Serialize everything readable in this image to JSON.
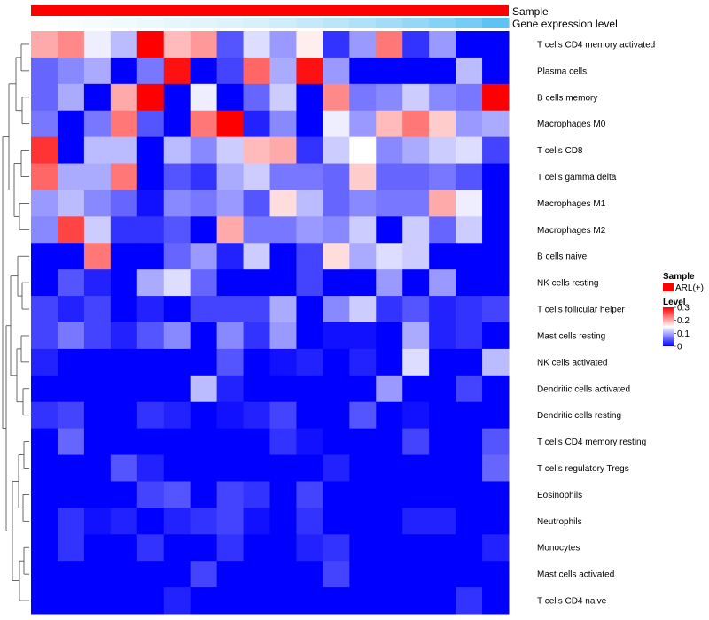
{
  "chart_data": {
    "type": "heatmap",
    "title": "",
    "annotation_labels": {
      "sample": "Sample",
      "gene_expression": "Gene expression level"
    },
    "sample_group": "ARL(+)",
    "colors": {
      "low": "#0000ff",
      "mid": "#ffffff",
      "high": "#ff0000",
      "sample_bar": "#ff0000",
      "gene_expr_low": "#ffffff",
      "gene_expr_high": "#5ec3f0",
      "dendro": "#444444"
    },
    "color_scale": {
      "min": 0,
      "mid": 0.15,
      "max": 0.3,
      "ticks": [
        0,
        0.1,
        0.2,
        0.3
      ]
    },
    "legend": {
      "sample_title": "Sample",
      "sample_entry": "ARL(+)",
      "level_title": "Level",
      "tick_labels": [
        "0",
        "0.1",
        "0.2",
        "0.3"
      ]
    },
    "n_samples": 18,
    "gene_expression_levels": [
      0.0,
      0.03,
      0.06,
      0.09,
      0.12,
      0.15,
      0.18,
      0.21,
      0.25,
      0.3,
      0.36,
      0.42,
      0.5,
      0.58,
      0.66,
      0.75,
      0.85,
      1.0
    ],
    "rows": [
      {
        "name": "T cells CD4 memory activated",
        "values": [
          0.2,
          0.22,
          0.14,
          0.11,
          0.3,
          0.19,
          0.21,
          0.05,
          0.13,
          0.09,
          0.16,
          0.03,
          0.09,
          0.23,
          0.03,
          0.09,
          0.0,
          0.0
        ]
      },
      {
        "name": "Plasma cells",
        "values": [
          0.06,
          0.08,
          0.1,
          0.0,
          0.07,
          0.29,
          0.0,
          0.04,
          0.24,
          0.1,
          0.29,
          0.09,
          0.0,
          0.0,
          0.0,
          0.0,
          0.11,
          0.0
        ]
      },
      {
        "name": "B cells memory",
        "values": [
          0.06,
          0.1,
          0.0,
          0.2,
          0.3,
          0.0,
          0.14,
          0.0,
          0.06,
          0.12,
          0.0,
          0.22,
          0.07,
          0.08,
          0.12,
          0.08,
          0.07,
          0.3
        ]
      },
      {
        "name": "Macrophages M0",
        "values": [
          0.07,
          0.0,
          0.07,
          0.23,
          0.05,
          0.0,
          0.23,
          0.3,
          0.02,
          0.08,
          0.0,
          0.14,
          0.09,
          0.19,
          0.23,
          0.18,
          0.09,
          0.1
        ]
      },
      {
        "name": "T cells CD8",
        "values": [
          0.27,
          0.0,
          0.11,
          0.11,
          0.0,
          0.11,
          0.08,
          0.12,
          0.19,
          0.2,
          0.03,
          0.12,
          0.15,
          0.08,
          0.1,
          0.12,
          0.13,
          0.04
        ]
      },
      {
        "name": "T cells gamma delta",
        "values": [
          0.24,
          0.1,
          0.1,
          0.23,
          0.0,
          0.05,
          0.03,
          0.1,
          0.12,
          0.07,
          0.07,
          0.06,
          0.18,
          0.06,
          0.06,
          0.07,
          0.05,
          0.0
        ]
      },
      {
        "name": "Macrophages M1",
        "values": [
          0.09,
          0.11,
          0.08,
          0.06,
          0.01,
          0.08,
          0.07,
          0.09,
          0.05,
          0.17,
          0.11,
          0.06,
          0.08,
          0.07,
          0.07,
          0.2,
          0.14,
          0.0
        ]
      },
      {
        "name": "Macrophages M2",
        "values": [
          0.08,
          0.26,
          0.12,
          0.03,
          0.03,
          0.05,
          0.0,
          0.2,
          0.07,
          0.07,
          0.09,
          0.08,
          0.12,
          0.0,
          0.12,
          0.06,
          0.12,
          0.0
        ]
      },
      {
        "name": "B cells naive",
        "values": [
          0.0,
          0.0,
          0.23,
          0.0,
          0.0,
          0.06,
          0.09,
          0.02,
          0.12,
          0.0,
          0.04,
          0.17,
          0.1,
          0.13,
          0.12,
          0.0,
          0.0,
          0.0
        ]
      },
      {
        "name": "NK cells resting",
        "values": [
          0.0,
          0.05,
          0.02,
          0.0,
          0.1,
          0.13,
          0.06,
          0.0,
          0.0,
          0.0,
          0.04,
          0.0,
          0.0,
          0.09,
          0.0,
          0.09,
          0.0,
          0.0
        ]
      },
      {
        "name": "T cells follicular helper",
        "values": [
          0.04,
          0.02,
          0.04,
          0.0,
          0.02,
          0.0,
          0.04,
          0.04,
          0.04,
          0.1,
          0.0,
          0.08,
          0.12,
          0.03,
          0.05,
          0.02,
          0.03,
          0.04
        ]
      },
      {
        "name": "Mast cells resting",
        "values": [
          0.04,
          0.07,
          0.04,
          0.02,
          0.05,
          0.08,
          0.0,
          0.08,
          0.03,
          0.09,
          0.0,
          0.01,
          0.01,
          0.0,
          0.1,
          0.02,
          0.03,
          0.0
        ]
      },
      {
        "name": "NK cells activated",
        "values": [
          0.02,
          0.0,
          0.0,
          0.0,
          0.0,
          0.0,
          0.0,
          0.05,
          0.0,
          0.01,
          0.02,
          0.0,
          0.02,
          0.0,
          0.13,
          0.0,
          0.0,
          0.11
        ]
      },
      {
        "name": "Dendritic cells activated",
        "values": [
          0.0,
          0.0,
          0.0,
          0.0,
          0.0,
          0.0,
          0.11,
          0.02,
          0.0,
          0.0,
          0.0,
          0.0,
          0.0,
          0.09,
          0.0,
          0.0,
          0.04,
          0.0
        ]
      },
      {
        "name": "Dendritic cells resting",
        "values": [
          0.03,
          0.04,
          0.0,
          0.0,
          0.03,
          0.02,
          0.0,
          0.01,
          0.02,
          0.04,
          0.0,
          0.0,
          0.05,
          0.0,
          0.01,
          0.0,
          0.0,
          0.0
        ]
      },
      {
        "name": "T cells CD4 memory resting",
        "values": [
          0.0,
          0.06,
          0.0,
          0.0,
          0.0,
          0.0,
          0.0,
          0.0,
          0.0,
          0.03,
          0.01,
          0.0,
          0.0,
          0.0,
          0.04,
          0.0,
          0.0,
          0.05
        ]
      },
      {
        "name": "T cells regulatory  Tregs",
        "values": [
          0.0,
          0.0,
          0.0,
          0.05,
          0.02,
          0.0,
          0.0,
          0.0,
          0.0,
          0.0,
          0.0,
          0.02,
          0.0,
          0.0,
          0.0,
          0.0,
          0.0,
          0.06
        ]
      },
      {
        "name": "Eosinophils",
        "values": [
          0.0,
          0.0,
          0.0,
          0.0,
          0.04,
          0.05,
          0.0,
          0.04,
          0.03,
          0.0,
          0.04,
          0.0,
          0.0,
          0.0,
          0.0,
          0.0,
          0.0,
          0.0
        ]
      },
      {
        "name": "Neutrophils",
        "values": [
          0.0,
          0.03,
          0.01,
          0.02,
          0.0,
          0.02,
          0.03,
          0.04,
          0.01,
          0.0,
          0.03,
          0.0,
          0.0,
          0.0,
          0.02,
          0.02,
          0.0,
          0.0
        ]
      },
      {
        "name": "Monocytes",
        "values": [
          0.0,
          0.03,
          0.0,
          0.0,
          0.03,
          0.0,
          0.0,
          0.03,
          0.0,
          0.0,
          0.02,
          0.03,
          0.0,
          0.0,
          0.0,
          0.0,
          0.0,
          0.02
        ]
      },
      {
        "name": "Mast cells activated",
        "values": [
          0.0,
          0.0,
          0.0,
          0.0,
          0.0,
          0.0,
          0.04,
          0.0,
          0.0,
          0.0,
          0.0,
          0.04,
          0.0,
          0.0,
          0.0,
          0.0,
          0.0,
          0.0
        ]
      },
      {
        "name": "T cells CD4 naive",
        "values": [
          0.0,
          0.0,
          0.0,
          0.0,
          0.0,
          0.02,
          0.0,
          0.0,
          0.0,
          0.0,
          0.0,
          0.0,
          0.0,
          0.0,
          0.0,
          0.0,
          0.03,
          0.0
        ]
      }
    ]
  }
}
